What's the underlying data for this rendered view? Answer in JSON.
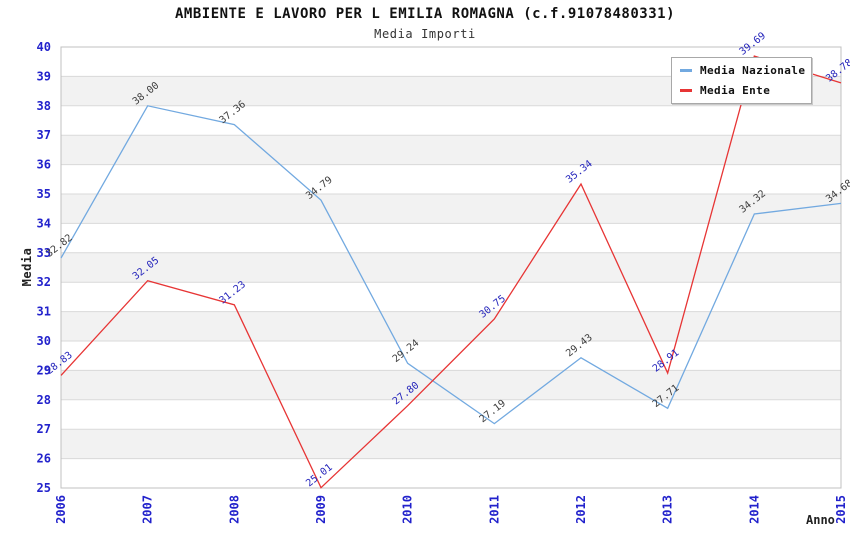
{
  "chart_data": {
    "type": "line",
    "title": "AMBIENTE E LAVORO PER L EMILIA ROMAGNA (c.f.91078480331)",
    "subtitle": "Media Importi",
    "xlabel": "Anno",
    "ylabel": "Media",
    "x": [
      "2006",
      "2007",
      "2008",
      "2009",
      "2010",
      "2011",
      "2012",
      "2013",
      "2014",
      "2015"
    ],
    "ylim": [
      25,
      40
    ],
    "ytick_step": 1,
    "grid": "horizontal gridlines with alternating shaded bands",
    "legend_position": "top-right inside plot",
    "series": [
      {
        "name": "Media Nazionale",
        "color": "#72a9e0",
        "label_color": "#3c3c3c",
        "values": [
          32.82,
          38.0,
          37.36,
          34.79,
          29.24,
          27.19,
          29.43,
          27.71,
          34.32,
          34.68
        ]
      },
      {
        "name": "Media Ente",
        "color": "#e73535",
        "label_color": "#2424bb",
        "values": [
          28.83,
          32.05,
          31.23,
          25.01,
          27.8,
          30.75,
          35.34,
          28.91,
          39.69,
          38.78
        ]
      }
    ]
  },
  "colors": {
    "axis_text": "#2222cc",
    "band": "#f2f2f2",
    "grid": "#d9d9d9",
    "plot_border": "#c0c0c0",
    "title_text": "#111111",
    "subtitle_text": "#333333"
  }
}
